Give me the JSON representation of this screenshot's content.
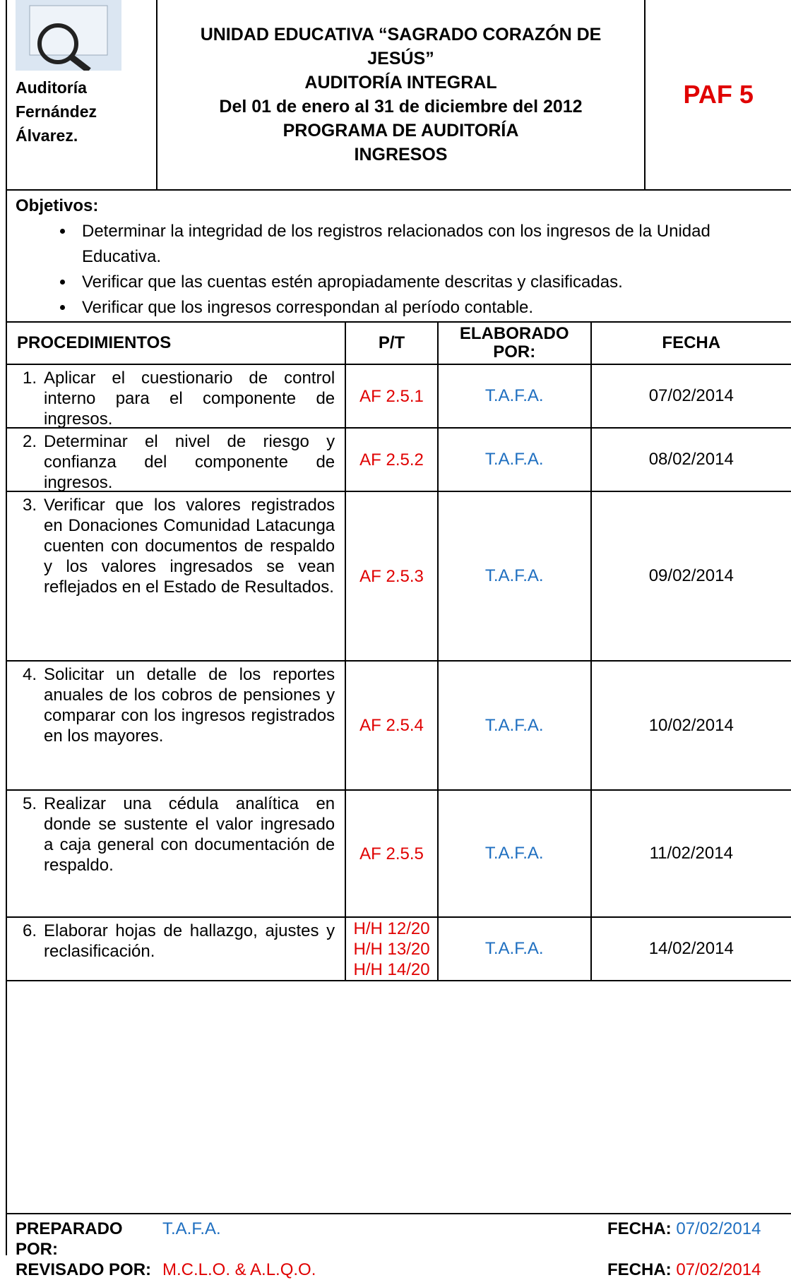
{
  "header": {
    "firm": "Auditoría Fernández Álvarez.",
    "title_lines": [
      "UNIDAD EDUCATIVA “SAGRADO CORAZÓN DE JESÚS”",
      "AUDITORÍA INTEGRAL",
      "Del 01 de enero al 31 de diciembre del 2012",
      "PROGRAMA DE AUDITORÍA",
      "INGRESOS"
    ],
    "code": "PAF 5"
  },
  "objectives": {
    "label": "Objetivos:",
    "items": [
      "Determinar la integridad de los registros relacionados con los ingresos de la Unidad Educativa.",
      "Verificar que las cuentas estén apropiadamente descritas y clasificadas.",
      "Verificar que los ingresos correspondan al período contable."
    ]
  },
  "table": {
    "columns": [
      "PROCEDIMIENTOS",
      "P/T",
      "ELABORADO POR:",
      "FECHA"
    ],
    "rows": [
      {
        "number": "1.",
        "procedure": "Aplicar el cuestionario de control interno para el componente de ingresos.",
        "pt": [
          "AF 2.5.1"
        ],
        "by": "T.A.F.A.",
        "date": "07/02/2014"
      },
      {
        "number": "2.",
        "procedure": "Determinar el nivel de riesgo y confianza del componente de ingresos.",
        "pt": [
          "AF 2.5.2"
        ],
        "by": "T.A.F.A.",
        "date": "08/02/2014"
      },
      {
        "number": "3.",
        "procedure": "Verificar que los valores registrados en Donaciones Comunidad Latacunga cuenten con documentos de respaldo y los valores ingresados se vean reflejados en el Estado de Resultados.",
        "pt": [
          "AF 2.5.3"
        ],
        "by": "T.A.F.A.",
        "date": "09/02/2014"
      },
      {
        "number": "4.",
        "procedure": "Solicitar un detalle de los reportes anuales de los cobros de pensiones y comparar con los ingresos registrados en los mayores.",
        "pt": [
          "AF 2.5.4"
        ],
        "by": "T.A.F.A.",
        "date": "10/02/2014"
      },
      {
        "number": "5.",
        "procedure": "Realizar una cédula analítica en donde se sustente el valor ingresado a caja general con documentación de respaldo.",
        "pt": [
          "AF 2.5.5"
        ],
        "by": "T.A.F.A.",
        "date": "11/02/2014"
      },
      {
        "number": "6.",
        "procedure": "Elaborar hojas de hallazgo, ajustes y reclasificación.",
        "pt": [
          "H/H 12/20",
          "H/H 13/20",
          "H/H 14/20"
        ],
        "by": "T.A.F.A.",
        "date": "14/02/2014"
      }
    ]
  },
  "footer": {
    "prepared_label": "PREPARADO POR:",
    "prepared_by": "T.A.F.A.",
    "prepared_date_label": "FECHA:",
    "prepared_date": "07/02/2014",
    "reviewed_label": "REVISADO POR:",
    "reviewed_by": "M.C.L.O. & A.L.Q.O.",
    "reviewed_date_label": "FECHA:",
    "reviewed_date": "07/02/2014"
  }
}
